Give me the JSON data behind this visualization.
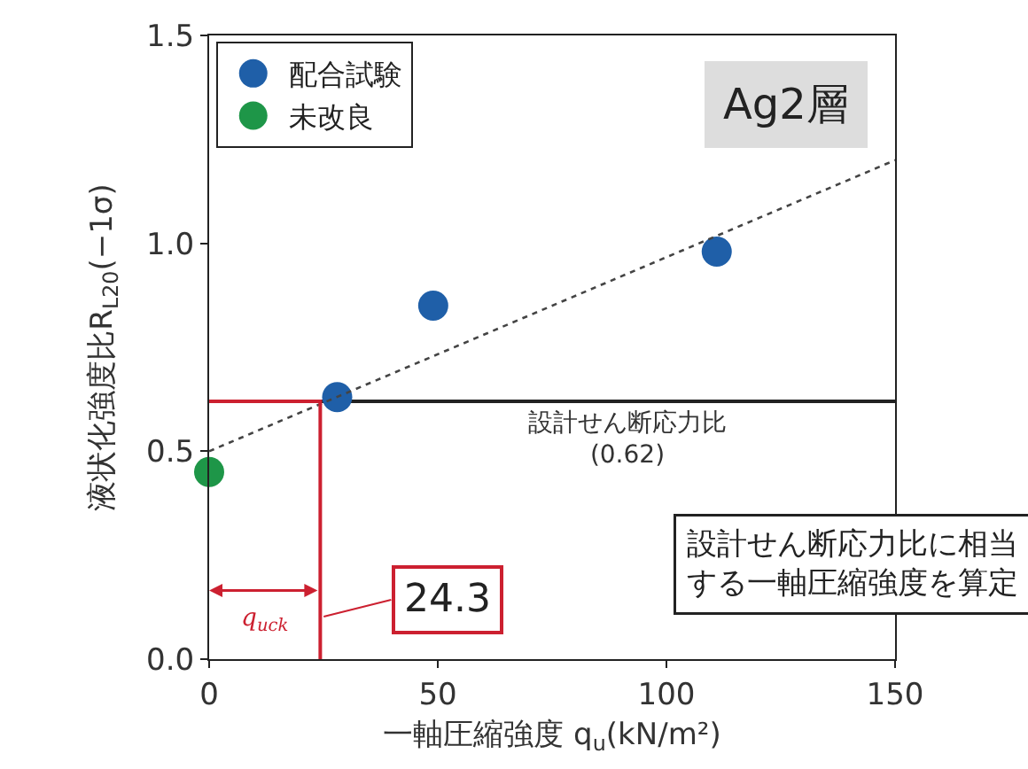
{
  "chart_data": {
    "type": "scatter",
    "xlabel": "一軸圧縮強度 q$_{u}$(kN/m²)",
    "ylabel": "液状化強度比R$_{L20}$(−1σ)",
    "xlim": [
      0,
      150
    ],
    "xticks": [
      0,
      50,
      100,
      150
    ],
    "ylim": [
      0,
      1.5
    ],
    "yticks": [
      {
        "value": 0,
        "label": "0.0"
      },
      0.5,
      {
        "value": 1,
        "label": "1.0"
      },
      1.5
    ],
    "series": [
      {
        "name": "配合試験",
        "color": "#1f5fa8",
        "x": [
          28,
          49,
          111
        ],
        "values": [
          0.63,
          0.85,
          0.98
        ]
      },
      {
        "name": "未改良",
        "color": "#1e9648",
        "x": [
          0
        ],
        "values": [
          0.45
        ]
      },
      {
        "color": "#444444",
        "type": "line",
        "line_style": "dotted",
        "marker": "none",
        "x": [
          0,
          150
        ],
        "values": [
          0.5,
          1.2
        ]
      },
      {
        "color": "#cc2030",
        "type": "line",
        "line_style": "solid",
        "marker": "none",
        "x": [
          0,
          24.3,
          24.3
        ],
        "values": [
          0.62,
          0.62,
          0
        ]
      }
    ],
    "ref_lines": [
      {
        "axis": "y",
        "value": 0.62,
        "label": "設計せん断応力比\n(0.62)",
        "color": "#222222"
      }
    ],
    "annotations": [
      "q$_{uck}$",
      {
        "text": "24.3",
        "x": 24.3,
        "y": 0.1
      },
      "設計せん断応力比に相当する一軸圧縮強度を算定",
      "Ag2層"
    ],
    "marker": "circle",
    "legend": "top left",
    "grid": false
  }
}
